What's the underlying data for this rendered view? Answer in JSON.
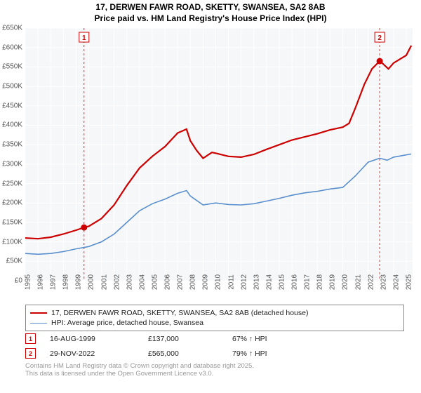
{
  "title_line1": "17, DERWEN FAWR ROAD, SKETTY, SWANSEA, SA2 8AB",
  "title_line2": "Price paid vs. HM Land Registry's House Price Index (HPI)",
  "chart": {
    "type": "line",
    "background_color": "#f6f7f8",
    "grid_color": "#ffffff",
    "ylim": [
      0,
      650000
    ],
    "ytick_step": 50000,
    "yticks": [
      "£0",
      "£50K",
      "£100K",
      "£150K",
      "£200K",
      "£250K",
      "£300K",
      "£350K",
      "£400K",
      "£450K",
      "£500K",
      "£550K",
      "£600K",
      "£650K"
    ],
    "xlim": [
      1995,
      2025.5
    ],
    "xticks": [
      1995,
      1996,
      1997,
      1998,
      1999,
      2000,
      2001,
      2002,
      2003,
      2004,
      2005,
      2006,
      2007,
      2008,
      2009,
      2010,
      2011,
      2012,
      2013,
      2014,
      2015,
      2016,
      2017,
      2018,
      2019,
      2020,
      2021,
      2022,
      2023,
      2024,
      2025
    ],
    "series": [
      {
        "name": "price_paid",
        "label": "17, DERWEN FAWR ROAD, SKETTY, SWANSEA, SA2 8AB (detached house)",
        "color": "#cc0000",
        "line_width": 2.2,
        "points": [
          [
            1995,
            110000
          ],
          [
            1996,
            108000
          ],
          [
            1997,
            112000
          ],
          [
            1998,
            120000
          ],
          [
            1999,
            130000
          ],
          [
            1999.63,
            137000
          ],
          [
            2000,
            140000
          ],
          [
            2001,
            160000
          ],
          [
            2002,
            195000
          ],
          [
            2003,
            245000
          ],
          [
            2004,
            290000
          ],
          [
            2005,
            320000
          ],
          [
            2006,
            345000
          ],
          [
            2007,
            380000
          ],
          [
            2007.7,
            390000
          ],
          [
            2008,
            360000
          ],
          [
            2008.5,
            335000
          ],
          [
            2009,
            315000
          ],
          [
            2009.7,
            330000
          ],
          [
            2010,
            328000
          ],
          [
            2011,
            320000
          ],
          [
            2012,
            318000
          ],
          [
            2013,
            325000
          ],
          [
            2014,
            338000
          ],
          [
            2015,
            350000
          ],
          [
            2016,
            362000
          ],
          [
            2017,
            370000
          ],
          [
            2018,
            378000
          ],
          [
            2019,
            388000
          ],
          [
            2020,
            395000
          ],
          [
            2020.5,
            405000
          ],
          [
            2021,
            445000
          ],
          [
            2021.7,
            505000
          ],
          [
            2022.3,
            545000
          ],
          [
            2022.91,
            565000
          ],
          [
            2023.1,
            560000
          ],
          [
            2023.6,
            545000
          ],
          [
            2024,
            560000
          ],
          [
            2024.5,
            570000
          ],
          [
            2025,
            580000
          ],
          [
            2025.4,
            605000
          ]
        ]
      },
      {
        "name": "hpi",
        "label": "HPI: Average price, detached house, Swansea",
        "color": "#5a8fce",
        "line_width": 1.6,
        "points": [
          [
            1995,
            70000
          ],
          [
            1996,
            68000
          ],
          [
            1997,
            70000
          ],
          [
            1998,
            75000
          ],
          [
            1999,
            82000
          ],
          [
            2000,
            88000
          ],
          [
            2001,
            100000
          ],
          [
            2002,
            120000
          ],
          [
            2003,
            150000
          ],
          [
            2004,
            180000
          ],
          [
            2005,
            198000
          ],
          [
            2006,
            210000
          ],
          [
            2007,
            225000
          ],
          [
            2007.7,
            232000
          ],
          [
            2008,
            218000
          ],
          [
            2009,
            195000
          ],
          [
            2010,
            200000
          ],
          [
            2011,
            196000
          ],
          [
            2012,
            195000
          ],
          [
            2013,
            198000
          ],
          [
            2014,
            205000
          ],
          [
            2015,
            212000
          ],
          [
            2016,
            220000
          ],
          [
            2017,
            226000
          ],
          [
            2018,
            230000
          ],
          [
            2019,
            236000
          ],
          [
            2020,
            240000
          ],
          [
            2021,
            270000
          ],
          [
            2022,
            305000
          ],
          [
            2022.91,
            315000
          ],
          [
            2023.5,
            310000
          ],
          [
            2024,
            318000
          ],
          [
            2024.7,
            322000
          ],
          [
            2025.4,
            326000
          ]
        ]
      }
    ],
    "sale_markers": [
      {
        "num": "1",
        "x": 1999.63,
        "y": 137000,
        "dot_color": "#cc0000",
        "line_color": "#cc0000"
      },
      {
        "num": "2",
        "x": 2022.91,
        "y": 565000,
        "dot_color": "#cc0000",
        "line_color": "#cc0000"
      }
    ]
  },
  "legend": {
    "border_color": "#888888",
    "rows": [
      {
        "color": "#cc0000",
        "width": 2.2,
        "label": "17, DERWEN FAWR ROAD, SKETTY, SWANSEA, SA2 8AB (detached house)"
      },
      {
        "color": "#5a8fce",
        "width": 1.6,
        "label": "HPI: Average price, detached house, Swansea"
      }
    ]
  },
  "sales_table": [
    {
      "num": "1",
      "date": "16-AUG-1999",
      "price": "£137,000",
      "hpi": "67% ↑ HPI"
    },
    {
      "num": "2",
      "date": "29-NOV-2022",
      "price": "£565,000",
      "hpi": "79% ↑ HPI"
    }
  ],
  "footer_line1": "Contains HM Land Registry data © Crown copyright and database right 2025.",
  "footer_line2": "This data is licensed under the Open Government Licence v3.0."
}
